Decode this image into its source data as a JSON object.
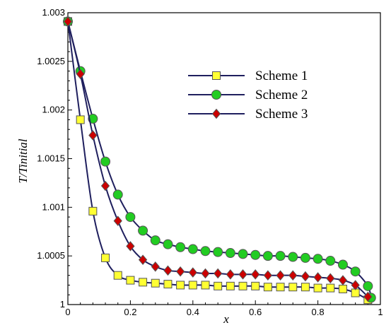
{
  "chart_data": {
    "type": "line",
    "title": "",
    "xlabel": "x",
    "ylabel": "T/Tinitial",
    "xlim": [
      0,
      1
    ],
    "ylim": [
      1,
      1.003
    ],
    "grid": false,
    "legend_position": "top-right",
    "x_ticks": [
      "0",
      "0.2",
      "0.4",
      "0.6",
      "0.8",
      "1"
    ],
    "y_ticks": [
      "1",
      "1.0005",
      "1.001",
      "1.0015",
      "1.002",
      "1.0025",
      "1.003"
    ],
    "x_tick_values": [
      0,
      0.2,
      0.4,
      0.6,
      0.8,
      1.0
    ],
    "y_tick_values": [
      1.0,
      1.0005,
      1.001,
      1.0015,
      1.002,
      1.0025,
      1.003
    ],
    "line_color": "#1f1f5e",
    "series": [
      {
        "name": "Scheme 1",
        "marker": "square",
        "fill": "#ffff33",
        "points": [
          [
            0.0,
            1.00291
          ],
          [
            0.04,
            1.0019
          ],
          [
            0.08,
            1.00096
          ],
          [
            0.12,
            1.00048
          ],
          [
            0.16,
            1.0003
          ],
          [
            0.2,
            1.00025
          ],
          [
            0.24,
            1.00023
          ],
          [
            0.28,
            1.00022
          ],
          [
            0.32,
            1.00021
          ],
          [
            0.36,
            1.0002
          ],
          [
            0.4,
            1.0002
          ],
          [
            0.44,
            1.0002
          ],
          [
            0.48,
            1.00019
          ],
          [
            0.52,
            1.00019
          ],
          [
            0.56,
            1.00019
          ],
          [
            0.6,
            1.00019
          ],
          [
            0.64,
            1.00018
          ],
          [
            0.68,
            1.00018
          ],
          [
            0.72,
            1.00018
          ],
          [
            0.76,
            1.00018
          ],
          [
            0.8,
            1.00017
          ],
          [
            0.84,
            1.00017
          ],
          [
            0.88,
            1.00016
          ],
          [
            0.92,
            1.00012
          ],
          [
            0.96,
            1.00005
          ]
        ]
      },
      {
        "name": "Scheme 2",
        "marker": "circle",
        "fill": "#22cc22",
        "points": [
          [
            0.0,
            1.00291
          ],
          [
            0.04,
            1.0024
          ],
          [
            0.08,
            1.00191
          ],
          [
            0.12,
            1.00147
          ],
          [
            0.16,
            1.00113
          ],
          [
            0.2,
            1.0009
          ],
          [
            0.24,
            1.00076
          ],
          [
            0.28,
            1.00066
          ],
          [
            0.32,
            1.00062
          ],
          [
            0.36,
            1.00059
          ],
          [
            0.4,
            1.00057
          ],
          [
            0.44,
            1.00055
          ],
          [
            0.48,
            1.00054
          ],
          [
            0.52,
            1.00053
          ],
          [
            0.56,
            1.00052
          ],
          [
            0.6,
            1.00051
          ],
          [
            0.64,
            1.0005
          ],
          [
            0.68,
            1.0005
          ],
          [
            0.72,
            1.00049
          ],
          [
            0.76,
            1.00048
          ],
          [
            0.8,
            1.00047
          ],
          [
            0.84,
            1.00045
          ],
          [
            0.88,
            1.00041
          ],
          [
            0.92,
            1.00034
          ],
          [
            0.96,
            1.00019
          ],
          [
            0.97,
            1.00007
          ]
        ]
      },
      {
        "name": "Scheme 3",
        "marker": "diamond",
        "fill": "#cc0000",
        "points": [
          [
            0.0,
            1.00291
          ],
          [
            0.04,
            1.00237
          ],
          [
            0.08,
            1.00174
          ],
          [
            0.12,
            1.00122
          ],
          [
            0.16,
            1.00086
          ],
          [
            0.2,
            1.0006
          ],
          [
            0.24,
            1.00046
          ],
          [
            0.28,
            1.00039
          ],
          [
            0.32,
            1.00035
          ],
          [
            0.36,
            1.00034
          ],
          [
            0.4,
            1.00033
          ],
          [
            0.44,
            1.00032
          ],
          [
            0.48,
            1.00032
          ],
          [
            0.52,
            1.00031
          ],
          [
            0.56,
            1.00031
          ],
          [
            0.6,
            1.00031
          ],
          [
            0.64,
            1.0003
          ],
          [
            0.68,
            1.0003
          ],
          [
            0.72,
            1.0003
          ],
          [
            0.76,
            1.00029
          ],
          [
            0.8,
            1.00028
          ],
          [
            0.84,
            1.00027
          ],
          [
            0.88,
            1.00025
          ],
          [
            0.92,
            1.0002
          ],
          [
            0.96,
            1.00008
          ]
        ]
      }
    ]
  }
}
